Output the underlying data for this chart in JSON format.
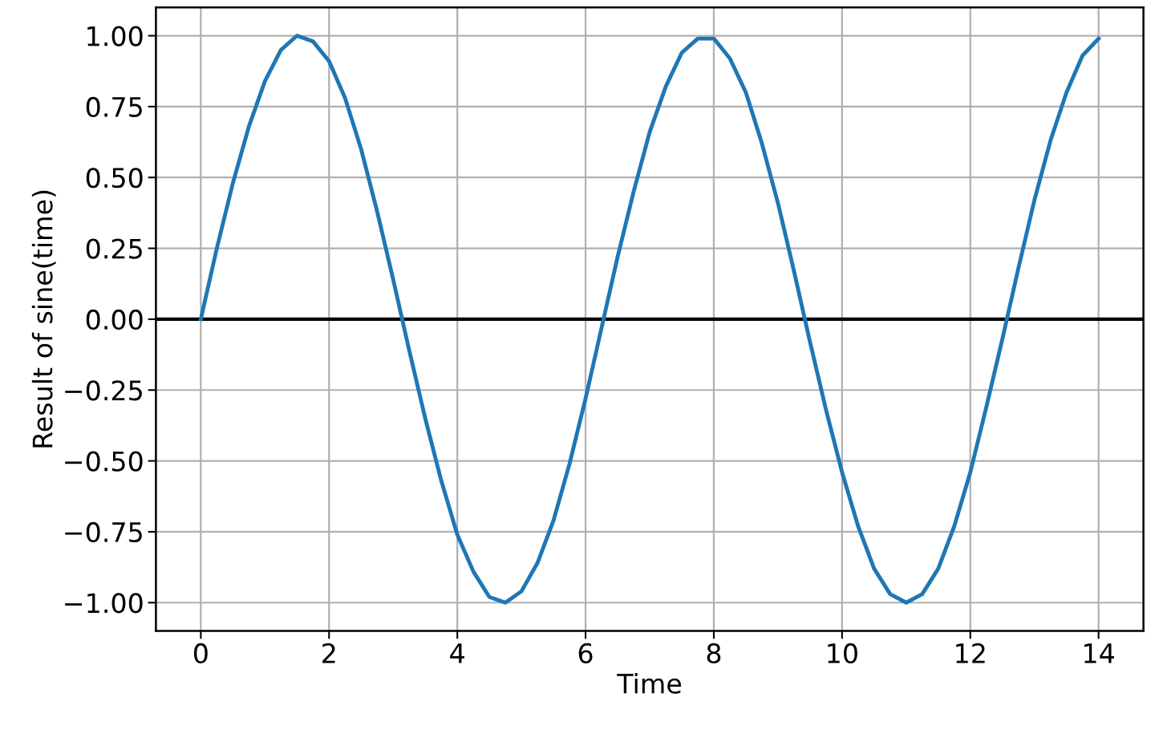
{
  "chart_data": {
    "type": "line",
    "xlabel": "Time",
    "ylabel": "Result of sine(time)",
    "x": [
      0,
      0.25,
      0.5,
      0.75,
      1,
      1.25,
      1.5,
      1.75,
      2,
      2.25,
      2.5,
      2.75,
      3,
      3.25,
      3.5,
      3.75,
      4,
      4.25,
      4.5,
      4.75,
      5,
      5.25,
      5.5,
      5.75,
      6,
      6.25,
      6.5,
      6.75,
      7,
      7.25,
      7.5,
      7.75,
      8,
      8.25,
      8.5,
      8.75,
      9,
      9.25,
      9.5,
      9.75,
      10,
      10.25,
      10.5,
      10.75,
      11,
      11.25,
      11.5,
      11.75,
      12,
      12.25,
      12.5,
      12.75,
      13,
      13.25,
      13.5,
      13.75,
      14
    ],
    "series": [
      {
        "color": "#1f77b4",
        "values": [
          0,
          0.25,
          0.48,
          0.68,
          0.84,
          0.95,
          1.0,
          0.98,
          0.91,
          0.78,
          0.6,
          0.38,
          0.14,
          -0.11,
          -0.35,
          -0.57,
          -0.76,
          -0.89,
          -0.98,
          -1.0,
          -0.96,
          -0.86,
          -0.71,
          -0.51,
          -0.28,
          -0.03,
          0.22,
          0.45,
          0.66,
          0.82,
          0.94,
          0.99,
          0.99,
          0.92,
          0.8,
          0.62,
          0.41,
          0.17,
          -0.08,
          -0.32,
          -0.54,
          -0.73,
          -0.88,
          -0.97,
          -1.0,
          -0.97,
          -0.88,
          -0.73,
          -0.54,
          -0.31,
          -0.07,
          0.18,
          0.42,
          0.63,
          0.8,
          0.93,
          0.99
        ]
      }
    ],
    "xlim": [
      -0.7,
      14.7
    ],
    "xticks": [
      0,
      2,
      4,
      6,
      8,
      10,
      12,
      14
    ],
    "ylim": [
      -1.1,
      1.1
    ],
    "yticks": [
      {
        "value": 1,
        "label": "1.00"
      },
      {
        "value": 0.75,
        "label": "0.75"
      },
      {
        "value": 0.5,
        "label": "0.50"
      },
      {
        "value": 0.25,
        "label": "0.25"
      },
      {
        "value": 0,
        "label": "0.00"
      },
      {
        "value": -0.25,
        "label": "−0.25"
      },
      {
        "value": -0.5,
        "label": "−0.50"
      },
      {
        "value": -0.75,
        "label": "−0.75"
      },
      {
        "value": -1,
        "label": "−1.00"
      }
    ],
    "ref_lines": [
      {
        "axis": "y",
        "value": 0,
        "color": "#000000"
      }
    ],
    "grid": true
  }
}
